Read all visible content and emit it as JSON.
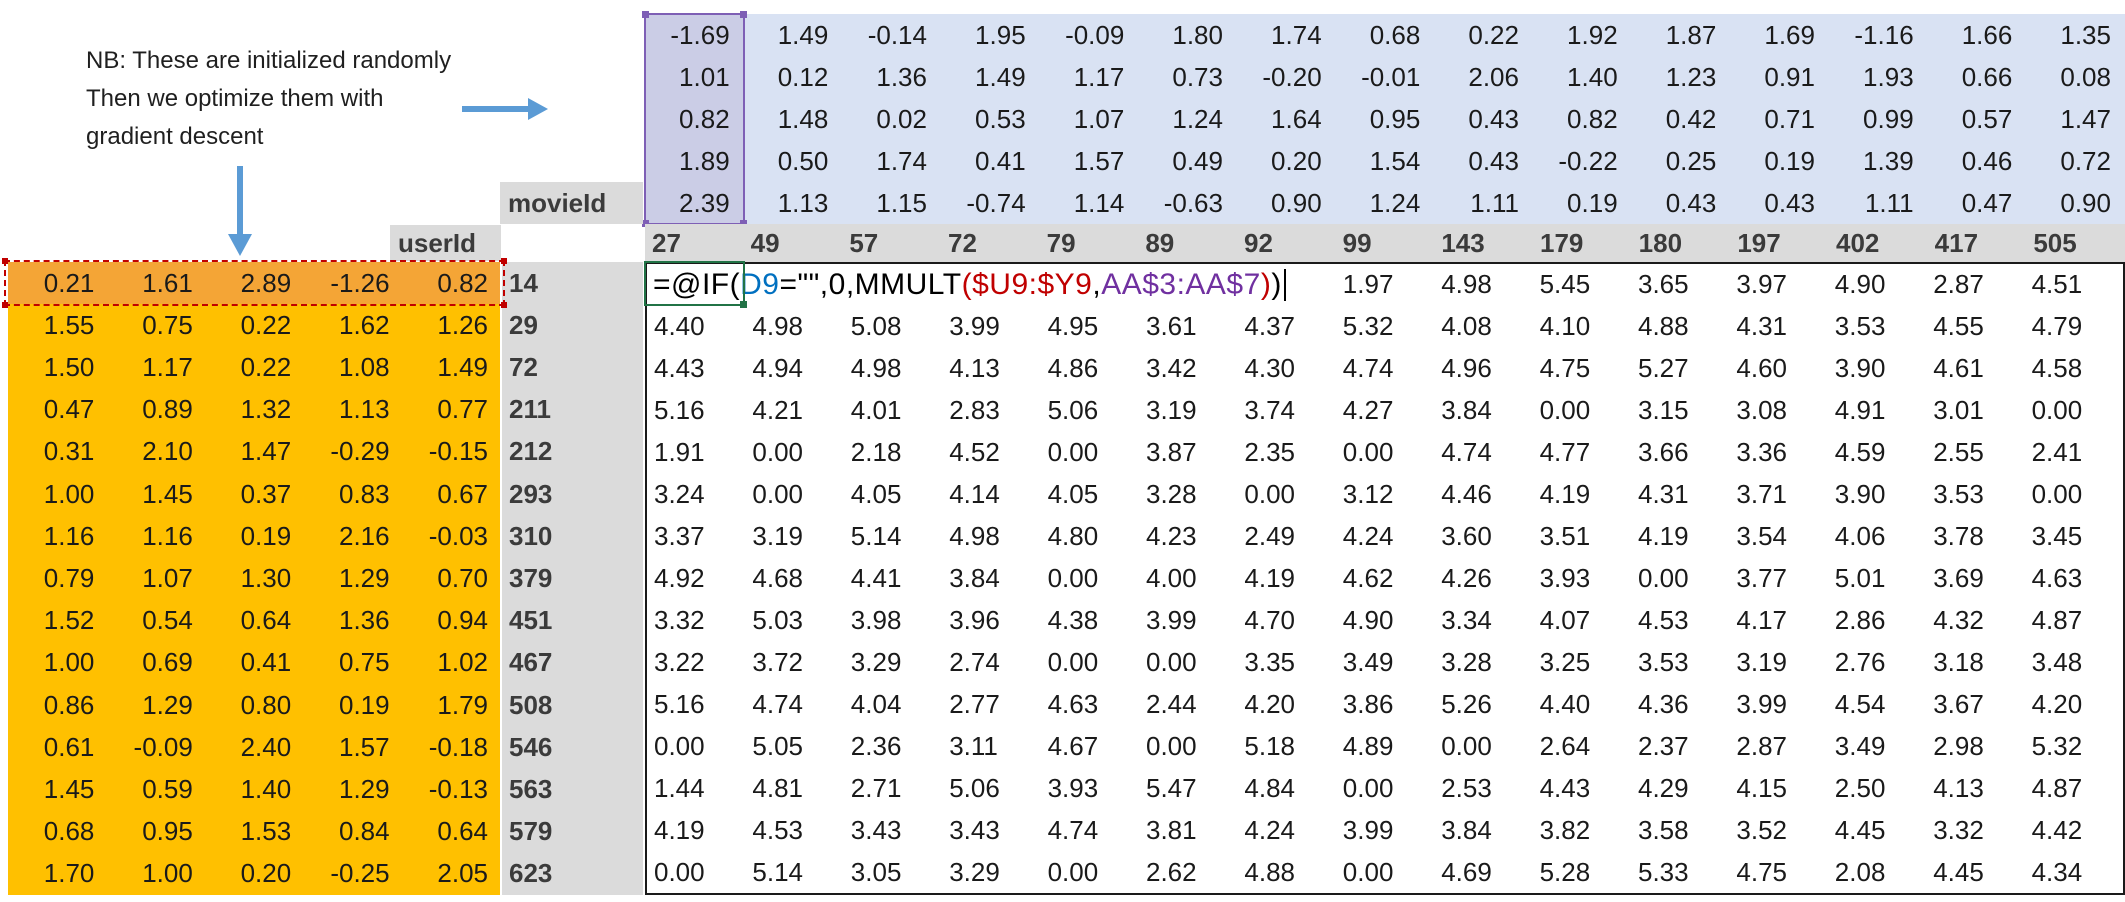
{
  "annotation": {
    "line1": "NB: These are initialized randomly",
    "line2": "Then we optimize them with",
    "line3": "gradient descent"
  },
  "labels": {
    "movie_id": "movieId",
    "user_id": "userId"
  },
  "movie_ids": [
    "27",
    "49",
    "57",
    "72",
    "79",
    "89",
    "92",
    "99",
    "143",
    "179",
    "180",
    "197",
    "402",
    "417",
    "505"
  ],
  "user_ids": [
    "14",
    "29",
    "72",
    "211",
    "212",
    "293",
    "310",
    "379",
    "451",
    "467",
    "508",
    "546",
    "563",
    "579",
    "623"
  ],
  "movie_factors": [
    [
      "-1.69",
      "1.49",
      "-0.14",
      "1.95",
      "-0.09",
      "1.80",
      "1.74",
      "0.68",
      "0.22",
      "1.92",
      "1.87",
      "1.69",
      "-1.16",
      "1.66",
      "1.35"
    ],
    [
      "1.01",
      "0.12",
      "1.36",
      "1.49",
      "1.17",
      "0.73",
      "-0.20",
      "-0.01",
      "2.06",
      "1.40",
      "1.23",
      "0.91",
      "1.93",
      "0.66",
      "0.08"
    ],
    [
      "0.82",
      "1.48",
      "0.02",
      "0.53",
      "1.07",
      "1.24",
      "1.64",
      "0.95",
      "0.43",
      "0.82",
      "0.42",
      "0.71",
      "0.99",
      "0.57",
      "1.47"
    ],
    [
      "1.89",
      "0.50",
      "1.74",
      "0.41",
      "1.57",
      "0.49",
      "0.20",
      "1.54",
      "0.43",
      "-0.22",
      "0.25",
      "0.19",
      "1.39",
      "0.46",
      "0.72"
    ],
    [
      "2.39",
      "1.13",
      "1.15",
      "-0.74",
      "1.14",
      "-0.63",
      "0.90",
      "1.24",
      "1.11",
      "0.19",
      "0.43",
      "0.43",
      "1.11",
      "0.47",
      "0.90"
    ]
  ],
  "user_factors": [
    [
      "0.21",
      "1.61",
      "2.89",
      "-1.26",
      "0.82"
    ],
    [
      "1.55",
      "0.75",
      "0.22",
      "1.62",
      "1.26"
    ],
    [
      "1.50",
      "1.17",
      "0.22",
      "1.08",
      "1.49"
    ],
    [
      "0.47",
      "0.89",
      "1.32",
      "1.13",
      "0.77"
    ],
    [
      "0.31",
      "2.10",
      "1.47",
      "-0.29",
      "-0.15"
    ],
    [
      "1.00",
      "1.45",
      "0.37",
      "0.83",
      "0.67"
    ],
    [
      "1.16",
      "1.16",
      "0.19",
      "2.16",
      "-0.03"
    ],
    [
      "0.79",
      "1.07",
      "1.30",
      "1.29",
      "0.70"
    ],
    [
      "1.52",
      "0.54",
      "0.64",
      "1.36",
      "0.94"
    ],
    [
      "1.00",
      "0.69",
      "0.41",
      "0.75",
      "1.02"
    ],
    [
      "0.86",
      "1.29",
      "0.80",
      "0.19",
      "1.79"
    ],
    [
      "0.61",
      "-0.09",
      "2.40",
      "1.57",
      "-0.18"
    ],
    [
      "1.45",
      "0.59",
      "1.40",
      "1.29",
      "-0.13"
    ],
    [
      "0.68",
      "0.95",
      "1.53",
      "0.84",
      "0.64"
    ],
    [
      "1.70",
      "1.00",
      "0.20",
      "-0.25",
      "2.05"
    ]
  ],
  "formula": {
    "segments": [
      {
        "text": "=@IF(",
        "color": "#000000"
      },
      {
        "text": "D9",
        "color": "#0070C0"
      },
      {
        "text": "=\"\",0,MMULT",
        "color": "#000000"
      },
      {
        "text": "(",
        "color": "#C00000"
      },
      {
        "text": "$U9:$Y9",
        "color": "#C00000"
      },
      {
        "text": ",",
        "color": "#000000"
      },
      {
        "text": "AA$3:AA$7",
        "color": "#7030A0"
      },
      {
        "text": ")",
        "color": "#C00000"
      },
      {
        "text": ")",
        "color": "#000000"
      }
    ]
  },
  "predictions": {
    "first_row_tail": [
      "1.97",
      "4.98",
      "5.45",
      "3.65",
      "3.97",
      "4.90",
      "2.87",
      "4.51"
    ],
    "rows": [
      [
        "4.40",
        "4.98",
        "5.08",
        "3.99",
        "4.95",
        "3.61",
        "4.37",
        "5.32",
        "4.08",
        "4.10",
        "4.88",
        "4.31",
        "3.53",
        "4.55",
        "4.79"
      ],
      [
        "4.43",
        "4.94",
        "4.98",
        "4.13",
        "4.86",
        "3.42",
        "4.30",
        "4.74",
        "4.96",
        "4.75",
        "5.27",
        "4.60",
        "3.90",
        "4.61",
        "4.58"
      ],
      [
        "5.16",
        "4.21",
        "4.01",
        "2.83",
        "5.06",
        "3.19",
        "3.74",
        "4.27",
        "3.84",
        "0.00",
        "3.15",
        "3.08",
        "4.91",
        "3.01",
        "0.00"
      ],
      [
        "1.91",
        "0.00",
        "2.18",
        "4.52",
        "0.00",
        "3.87",
        "2.35",
        "0.00",
        "4.74",
        "4.77",
        "3.66",
        "3.36",
        "4.59",
        "2.55",
        "2.41"
      ],
      [
        "3.24",
        "0.00",
        "4.05",
        "4.14",
        "4.05",
        "3.28",
        "0.00",
        "3.12",
        "4.46",
        "4.19",
        "4.31",
        "3.71",
        "3.90",
        "3.53",
        "0.00"
      ],
      [
        "3.37",
        "3.19",
        "5.14",
        "4.98",
        "4.80",
        "4.23",
        "2.49",
        "4.24",
        "3.60",
        "3.51",
        "4.19",
        "3.54",
        "4.06",
        "3.78",
        "3.45"
      ],
      [
        "4.92",
        "4.68",
        "4.41",
        "3.84",
        "0.00",
        "4.00",
        "4.19",
        "4.62",
        "4.26",
        "3.93",
        "0.00",
        "3.77",
        "5.01",
        "3.69",
        "4.63"
      ],
      [
        "3.32",
        "5.03",
        "3.98",
        "3.96",
        "4.38",
        "3.99",
        "4.70",
        "4.90",
        "3.34",
        "4.07",
        "4.53",
        "4.17",
        "2.86",
        "4.32",
        "4.87"
      ],
      [
        "3.22",
        "3.72",
        "3.29",
        "2.74",
        "0.00",
        "0.00",
        "3.35",
        "3.49",
        "3.28",
        "3.25",
        "3.53",
        "3.19",
        "2.76",
        "3.18",
        "3.48"
      ],
      [
        "5.16",
        "4.74",
        "4.04",
        "2.77",
        "4.63",
        "2.44",
        "4.20",
        "3.86",
        "5.26",
        "4.40",
        "4.36",
        "3.99",
        "4.54",
        "3.67",
        "4.20"
      ],
      [
        "0.00",
        "5.05",
        "2.36",
        "3.11",
        "4.67",
        "0.00",
        "5.18",
        "4.89",
        "0.00",
        "2.64",
        "2.37",
        "2.87",
        "3.49",
        "2.98",
        "5.32"
      ],
      [
        "1.44",
        "4.81",
        "2.71",
        "5.06",
        "3.93",
        "5.47",
        "4.84",
        "0.00",
        "2.53",
        "4.43",
        "4.29",
        "4.15",
        "2.50",
        "4.13",
        "4.87"
      ],
      [
        "4.19",
        "4.53",
        "3.43",
        "3.43",
        "4.74",
        "3.81",
        "4.24",
        "3.99",
        "3.84",
        "3.82",
        "3.58",
        "3.52",
        "4.45",
        "3.32",
        "4.42"
      ],
      [
        "0.00",
        "5.14",
        "3.05",
        "3.29",
        "0.00",
        "2.62",
        "4.88",
        "0.00",
        "4.69",
        "5.28",
        "5.33",
        "4.75",
        "2.08",
        "4.45",
        "4.34"
      ]
    ]
  },
  "colors": {
    "blue_fill": "#D9E2F3",
    "blue_selected_fill": "#CBCDE6",
    "selection_purple": "#7E5FB5",
    "orange_fill": "#FFC000",
    "orange_highlight_fill": "#F4A536",
    "marquee_red": "#C00000",
    "edit_green": "#217346",
    "header_gray": "#DBDBDB",
    "header_text": "#3B3B3B",
    "grid_border": "#1A1A1A",
    "arrow_blue": "#5B9BD5",
    "text_dark": "#1A1A1A"
  }
}
